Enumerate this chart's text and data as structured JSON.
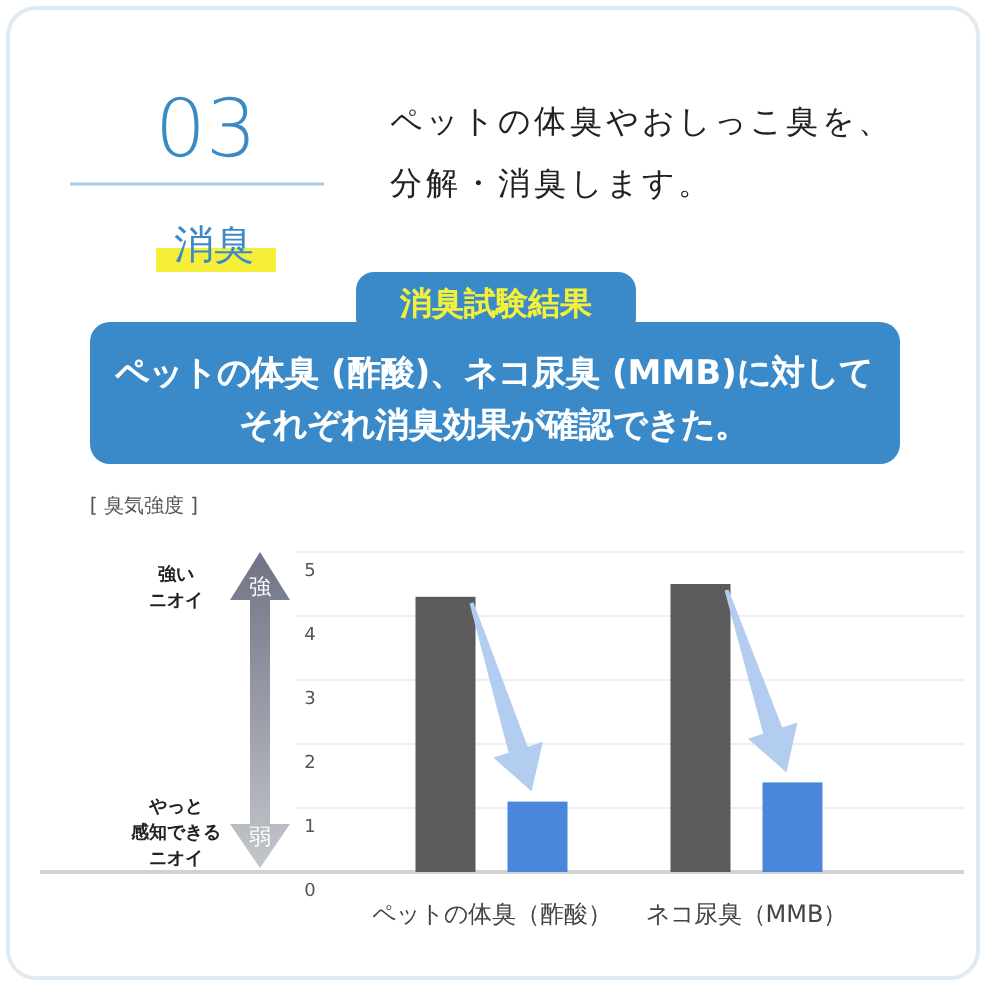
{
  "chart_data": {
    "type": "bar",
    "title": "消臭試験結果",
    "subtitle": "ペットの体臭 (酢酸)、ネコ尿臭 (MMB)に対して",
    "annotations": [
      "03",
      "ペットの体臭やおしっこ臭を、",
      "分解・消臭します。",
      "消臭",
      "強い",
      "ニオイ",
      "やっと",
      "感知できる",
      "ニオイ",
      "強",
      "弱",
      "[ 臭気強度 ]",
      "それぞれ消臭効果が確認できた。"
    ],
    "categories": [
      "ペットの体臭（酢酸）",
      "ネコ尿臭（MMB）"
    ],
    "series": [
      {
        "color": "#5b5b5b",
        "values": [
          4.3,
          4.5
        ]
      },
      {
        "color": "#4a86dc",
        "values": [
          1.1,
          1.4
        ]
      }
    ],
    "ylim": [
      0,
      5
    ],
    "yticks": [
      0,
      1,
      2,
      3,
      4,
      5
    ],
    "grid": "y"
  }
}
